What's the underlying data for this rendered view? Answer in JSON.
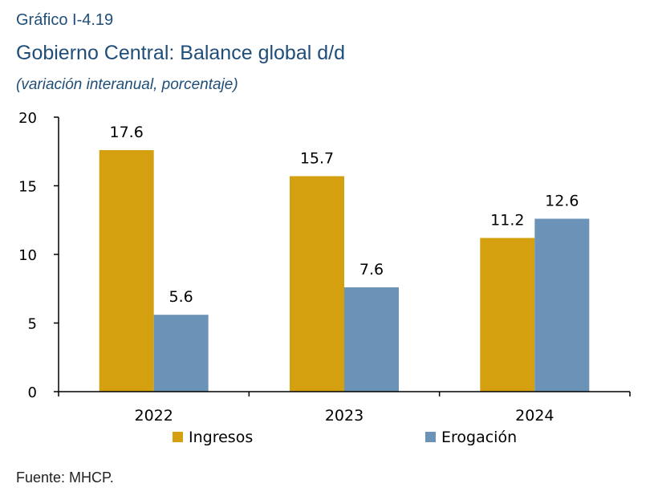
{
  "header": {
    "kicker": "Gráfico I-4.19",
    "title": "Gobierno Central: Balance global d/d",
    "subtitle": "(variación interanual, porcentaje)"
  },
  "footer": {
    "source": "Fuente: MHCP."
  },
  "chart_data": {
    "type": "bar",
    "categories": [
      "2022",
      "2023",
      "2024"
    ],
    "series": [
      {
        "name": "Ingresos",
        "values": [
          17.6,
          15.7,
          11.2
        ],
        "labels": [
          "17.6",
          "15.7",
          "11.2"
        ],
        "color": "#D4A00F"
      },
      {
        "name": "Erogación",
        "values": [
          5.6,
          7.6,
          12.6
        ],
        "labels": [
          "5.6",
          "7.6",
          "12.6"
        ],
        "color": "#6A93B7"
      }
    ],
    "ylim": [
      0,
      20
    ],
    "yticks": [
      0,
      5,
      10,
      15,
      20
    ],
    "ytick_labels": [
      "0",
      "5",
      "10",
      "15",
      "20"
    ],
    "legend_position": "bottom",
    "grid": false
  }
}
